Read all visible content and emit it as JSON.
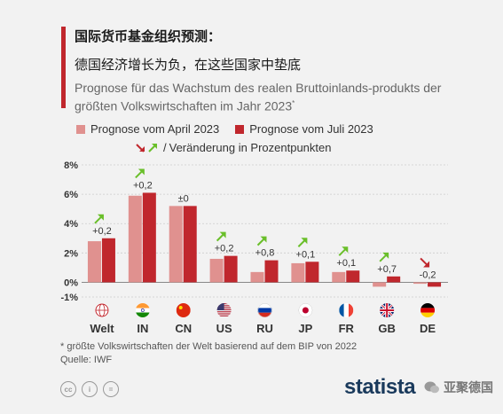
{
  "header": {
    "title_line1": "国际货币基金组织预测：",
    "title_line2": "德国经济增长为负，在这些国家中垫底",
    "subtitle": "Prognose für das Wachstum des realen Bruttoinlands-produkts der größten Volkswirtschaften im Jahr 2023",
    "subtitle_mark": "*"
  },
  "legend": {
    "april": "Prognose vom April 2023",
    "juli": "Prognose vom Juli 2023",
    "slash": "/",
    "change": "Veränderung in Prozentpunkten"
  },
  "colors": {
    "april": "#e0918f",
    "juli": "#c0272d",
    "arrow_up": "#6abf2a",
    "arrow_down": "#c0272d",
    "accent": "#c0272d"
  },
  "chart_data": {
    "type": "bar",
    "categories": [
      "Welt",
      "IN",
      "CN",
      "US",
      "RU",
      "JP",
      "FR",
      "GB",
      "DE"
    ],
    "series": [
      {
        "name": "Prognose vom April 2023",
        "values": [
          2.8,
          5.9,
          5.2,
          1.6,
          0.7,
          1.3,
          0.7,
          -0.3,
          -0.1
        ]
      },
      {
        "name": "Prognose vom Juli 2023",
        "values": [
          3.0,
          6.1,
          5.2,
          1.8,
          1.5,
          1.4,
          0.8,
          0.4,
          -0.3
        ]
      }
    ],
    "changes": [
      "+0,2",
      "+0,2",
      "±0",
      "+0,2",
      "+0,8",
      "+0,1",
      "+0,1",
      "+0,7",
      "-0,2"
    ],
    "change_direction": [
      "up",
      "up",
      "none",
      "up",
      "up",
      "up",
      "up",
      "up",
      "down"
    ],
    "y_ticks": [
      {
        "value": 8,
        "label": "8%"
      },
      {
        "value": 6,
        "label": "6%"
      },
      {
        "value": 4,
        "label": "4%"
      },
      {
        "value": 2,
        "label": "2%"
      },
      {
        "value": 0,
        "label": "0%"
      },
      {
        "value": -1,
        "label": "-1%"
      }
    ],
    "ylim": [
      -1,
      8
    ],
    "grid": true,
    "flag_icons": [
      "globe-icon",
      "flag-india-icon",
      "flag-china-icon",
      "flag-usa-icon",
      "flag-russia-icon",
      "flag-japan-icon",
      "flag-france-icon",
      "flag-uk-icon",
      "flag-germany-icon"
    ]
  },
  "footnote": {
    "line1": "* größte Volkswirtschaften der Welt basierend auf dem BIP von 2022",
    "line2": "Quelle: IWF"
  },
  "brand": {
    "logo": "statista",
    "watermark": "亚聚德国"
  }
}
